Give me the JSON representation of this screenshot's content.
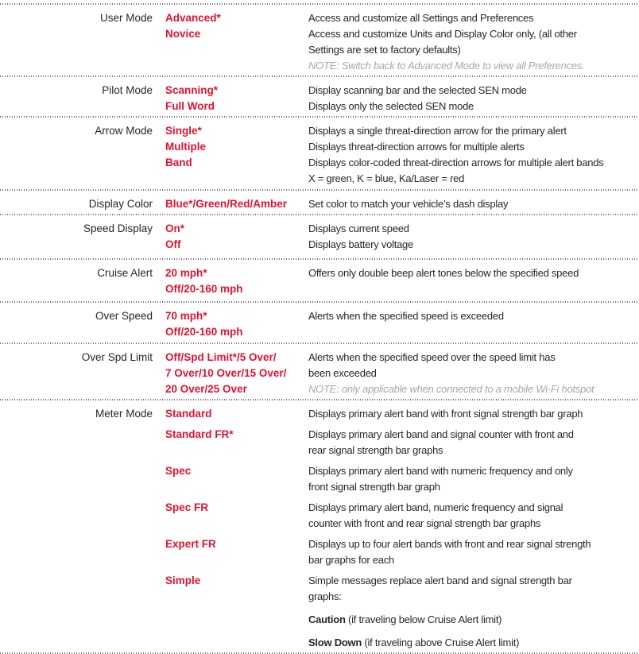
{
  "colors": {
    "option_red": "#e5112e",
    "text_dark": "#2a2627",
    "note_gray": "#a6a8ab",
    "separator_gray": "#6d6e71"
  },
  "rows": [
    {
      "label": "User Mode",
      "options": [
        "Advanced*",
        "Novice"
      ],
      "desc": [
        "Access and customize all Settings and Preferences",
        "Access and customize Units and Display Color only, (all other",
        "Settings are set to factory defaults)"
      ],
      "note": "NOTE: Switch back to Advanced Mode to view all Preferences."
    },
    {
      "label": "Pilot Mode",
      "options": [
        "Scanning*",
        "Full Word"
      ],
      "desc": [
        "Display scanning bar and the selected SEN mode",
        "Displays only the selected SEN mode"
      ]
    },
    {
      "label": "Arrow Mode",
      "options": [
        "Single*",
        "Multiple",
        "Band"
      ],
      "desc": [
        "Displays a single threat-direction arrow for the primary alert",
        "Displays threat-direction arrows for multiple alerts",
        "Displays color-coded threat-direction arrows for multiple alert bands",
        "X = green, K = blue, Ka/Laser = red"
      ]
    },
    {
      "label": "Display Color",
      "options": [
        "Blue*/Green/Red/Amber"
      ],
      "desc": [
        "Set color to match your vehicle’s dash display"
      ]
    },
    {
      "label": "Speed Display",
      "options": [
        "On*",
        "Off"
      ],
      "desc": [
        "Displays current speed",
        "Displays battery voltage"
      ]
    },
    {
      "label": "Cruise Alert",
      "options": [
        "20 mph*",
        "Off/20-160 mph"
      ],
      "desc": [
        "Offers only double beep alert tones below the specified speed"
      ]
    },
    {
      "label": "Over Speed",
      "options": [
        "70 mph*",
        "Off/20-160 mph"
      ],
      "desc": [
        "Alerts when the specified speed is exceeded"
      ]
    },
    {
      "label": "Over Spd Limit",
      "options": [
        "Off/Spd Limit*/5 Over/",
        "7 Over/10 Over/15 Over/",
        "20 Over/25 Over"
      ],
      "desc": [
        "Alerts when the specified speed over the speed limit has",
        "been exceeded"
      ],
      "note": "NOTE: only applicable when connected to a mobile Wi-Fi hotspot"
    },
    {
      "label": "Meter Mode",
      "subrows": [
        {
          "option": "Standard",
          "desc": [
            "Displays primary alert band with front signal strength bar graph"
          ]
        },
        {
          "option": "Standard FR*",
          "desc": [
            "Displays primary alert band and signal counter with front and",
            "rear signal strength bar graphs"
          ]
        },
        {
          "option": "Spec",
          "desc": [
            "Displays primary alert band with numeric frequency and only",
            "front signal strength bar graph"
          ]
        },
        {
          "option": "Spec FR",
          "desc": [
            "Displays primary alert band, numeric frequency and signal",
            "counter with front and rear signal strength bar graphs"
          ]
        },
        {
          "option": "Expert FR",
          "desc": [
            "Displays up to four alert bands with front and rear signal strength",
            "bar graphs for each"
          ]
        },
        {
          "option": "Simple",
          "desc": [
            "Simple messages replace alert band and signal strength bar",
            "graphs:"
          ],
          "extras": [
            {
              "bold": "Caution",
              "rest": " (if traveling below Cruise Alert limit)"
            },
            {
              "bold": "Slow Down",
              "rest": " (if traveling above Cruise Alert limit)"
            }
          ]
        }
      ]
    }
  ]
}
